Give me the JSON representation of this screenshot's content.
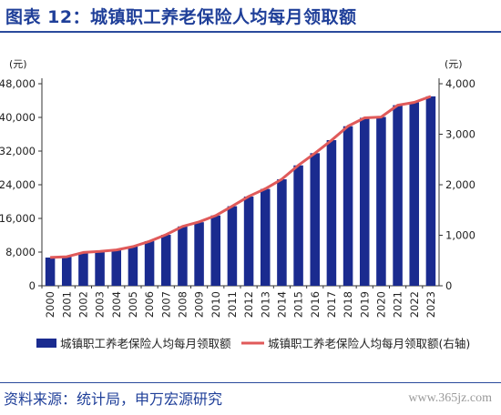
{
  "title": "图表 12：城镇职工养老保险人均每月领取额",
  "source": "资料来源：统计局，申万宏源研究",
  "watermark": "www.365jz.com",
  "colors": {
    "bar": "#1a2b8f",
    "line": "#e05a5a",
    "title": "#1f3f99",
    "axis": "#333333"
  },
  "chart_data": {
    "type": "bar",
    "title": "城镇职工养老保险人均每月领取额",
    "categories": [
      "2000",
      "2001",
      "2002",
      "2003",
      "2004",
      "2005",
      "2006",
      "2007",
      "2008",
      "2009",
      "2010",
      "2011",
      "2012",
      "2013",
      "2014",
      "2015",
      "2016",
      "2017",
      "2018",
      "2019",
      "2020",
      "2021",
      "2022",
      "2023"
    ],
    "left_axis": {
      "unit": "(元)",
      "ylim": [
        0,
        48000
      ],
      "ticks": [
        "0",
        "8,000",
        "16,000",
        "24,000",
        "32,000",
        "40,000",
        "48,000"
      ],
      "tick_values": [
        0,
        8000,
        16000,
        24000,
        32000,
        40000,
        48000
      ]
    },
    "right_axis": {
      "unit": "(元)",
      "ylim": [
        0,
        4000
      ],
      "ticks": [
        "0",
        "1,000",
        "2,000",
        "3,000",
        "4,000"
      ],
      "tick_values": [
        0,
        1000,
        2000,
        3000,
        4000
      ]
    },
    "series": [
      {
        "name": "城镇职工养老保险人均每月领取额",
        "type": "bar",
        "axis": "left",
        "values": [
          6700,
          6900,
          7900,
          8100,
          8600,
          9300,
          10600,
          12100,
          14100,
          15100,
          16700,
          18900,
          21200,
          23000,
          25300,
          28600,
          31500,
          34600,
          37900,
          39900,
          40100,
          42900,
          43600,
          45000
        ]
      },
      {
        "name": "城镇职工养老保险人均每月领取额(右轴)",
        "type": "line",
        "axis": "right",
        "values": [
          560,
          575,
          660,
          680,
          710,
          775,
          880,
          1010,
          1175,
          1265,
          1390,
          1575,
          1770,
          1920,
          2110,
          2385,
          2625,
          2880,
          3160,
          3325,
          3340,
          3575,
          3630,
          3750
        ]
      }
    ],
    "legend_position": "bottom",
    "grid": false
  }
}
